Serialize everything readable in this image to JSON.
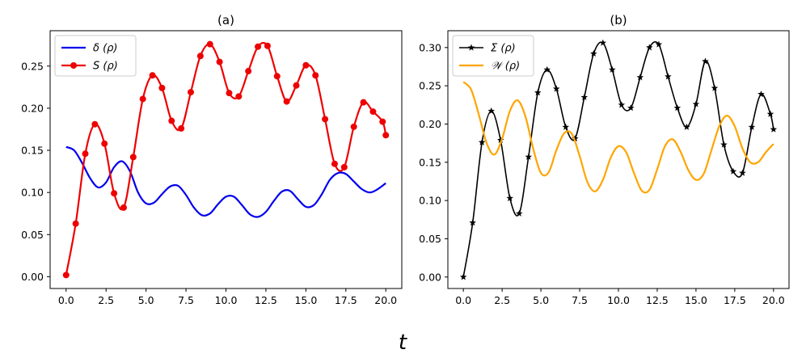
{
  "figure": {
    "xlabel": "t"
  },
  "chart_data": [
    {
      "type": "line",
      "title": "(a)",
      "xlabel": "",
      "ylabel": "",
      "xlim": [
        -1.0,
        21.0
      ],
      "ylim": [
        -0.014,
        0.292
      ],
      "xticks": [
        0,
        2.5,
        5,
        7.5,
        10,
        12.5,
        15,
        17.5,
        20
      ],
      "xtick_labels": [
        "0.0",
        "2.5",
        "5.0",
        "7.5",
        "10.0",
        "12.5",
        "15.0",
        "17.5",
        "20.0"
      ],
      "yticks": [
        0,
        0.05,
        0.1,
        0.15,
        0.2,
        0.25
      ],
      "ytick_labels": [
        "0.00",
        "0.05",
        "0.10",
        "0.15",
        "0.20",
        "0.25"
      ],
      "legend_position": "top-left",
      "series": [
        {
          "name": "δ (ρ)",
          "color": "#0000ee",
          "marker": "none",
          "x": [
            0,
            0.5,
            1.0,
            1.5,
            2.0,
            2.5,
            3.0,
            3.5,
            4.0,
            4.5,
            5.0,
            5.5,
            6.0,
            6.5,
            7.0,
            7.5,
            8.0,
            8.5,
            9.0,
            9.5,
            10.0,
            10.5,
            11.0,
            11.5,
            12.0,
            12.5,
            13.0,
            13.5,
            14.0,
            14.5,
            15.0,
            15.5,
            16.0,
            16.5,
            17.0,
            17.5,
            18.0,
            18.5,
            19.0,
            19.5,
            20.0
          ],
          "y": [
            0.154,
            0.15,
            0.135,
            0.117,
            0.106,
            0.112,
            0.13,
            0.137,
            0.125,
            0.1,
            0.087,
            0.088,
            0.098,
            0.107,
            0.108,
            0.097,
            0.082,
            0.073,
            0.075,
            0.086,
            0.095,
            0.095,
            0.085,
            0.074,
            0.071,
            0.077,
            0.09,
            0.101,
            0.102,
            0.092,
            0.083,
            0.085,
            0.098,
            0.115,
            0.123,
            0.122,
            0.113,
            0.104,
            0.1,
            0.104,
            0.111
          ]
        },
        {
          "name": "S (ρ)",
          "color": "#ee0000",
          "marker": "circle",
          "x": [
            0,
            0.6,
            1.2,
            1.8,
            2.4,
            3.0,
            3.6,
            4.2,
            4.8,
            5.4,
            6.0,
            6.6,
            7.2,
            7.8,
            8.4,
            9.0,
            9.6,
            10.2,
            10.8,
            11.4,
            12.0,
            12.6,
            13.2,
            13.8,
            14.4,
            15.0,
            15.6,
            16.2,
            16.8,
            17.4,
            18.0,
            18.6,
            19.2,
            19.8,
            20.0
          ],
          "y": [
            0.002,
            0.063,
            0.146,
            0.181,
            0.158,
            0.099,
            0.082,
            0.142,
            0.211,
            0.239,
            0.224,
            0.185,
            0.176,
            0.219,
            0.262,
            0.276,
            0.255,
            0.218,
            0.214,
            0.244,
            0.273,
            0.274,
            0.238,
            0.208,
            0.227,
            0.251,
            0.239,
            0.187,
            0.134,
            0.13,
            0.178,
            0.207,
            0.196,
            0.184,
            0.168
          ]
        }
      ]
    },
    {
      "type": "line",
      "title": "(b)",
      "xlabel": "",
      "ylabel": "",
      "xlim": [
        -1.0,
        21.0
      ],
      "ylim": [
        -0.015,
        0.322
      ],
      "xticks": [
        0,
        2.5,
        5,
        7.5,
        10,
        12.5,
        15,
        17.5,
        20
      ],
      "xtick_labels": [
        "0.0",
        "2.5",
        "5.0",
        "7.5",
        "10.0",
        "12.5",
        "15.0",
        "17.5",
        "20.0"
      ],
      "yticks": [
        0,
        0.05,
        0.1,
        0.15,
        0.2,
        0.25,
        0.3
      ],
      "ytick_labels": [
        "0.00",
        "0.05",
        "0.10",
        "0.15",
        "0.20",
        "0.25",
        "0.30"
      ],
      "legend_position": "top-left",
      "series": [
        {
          "name": "Σ (ρ)",
          "color": "#000000",
          "marker": "star",
          "x": [
            0,
            0.6,
            1.2,
            1.8,
            2.4,
            3.0,
            3.6,
            4.2,
            4.8,
            5.4,
            6.0,
            6.6,
            7.2,
            7.8,
            8.4,
            9.0,
            9.6,
            10.2,
            10.8,
            11.4,
            12.0,
            12.6,
            13.2,
            13.8,
            14.4,
            15.0,
            15.6,
            16.2,
            16.8,
            17.4,
            18.0,
            18.6,
            19.2,
            19.8,
            20.0
          ],
          "y": [
            0.0,
            0.071,
            0.176,
            0.217,
            0.179,
            0.103,
            0.083,
            0.157,
            0.241,
            0.271,
            0.246,
            0.196,
            0.181,
            0.235,
            0.292,
            0.306,
            0.271,
            0.225,
            0.221,
            0.261,
            0.3,
            0.304,
            0.262,
            0.221,
            0.196,
            0.226,
            0.282,
            0.247,
            0.173,
            0.138,
            0.136,
            0.196,
            0.239,
            0.213,
            0.193
          ]
        },
        {
          "name": "𝒲 (ρ)",
          "color": "#ffa500",
          "marker": "none",
          "x": [
            0,
            0.5,
            1.0,
            1.5,
            2.0,
            2.5,
            3.0,
            3.5,
            4.0,
            4.5,
            5.0,
            5.5,
            6.0,
            6.5,
            7.0,
            7.5,
            8.0,
            8.5,
            9.0,
            9.5,
            10.0,
            10.5,
            11.0,
            11.5,
            12.0,
            12.5,
            13.0,
            13.5,
            14.0,
            14.5,
            15.0,
            15.5,
            16.0,
            16.5,
            17.0,
            17.5,
            18.0,
            18.5,
            19.0,
            19.5,
            20.0
          ],
          "y": [
            0.255,
            0.245,
            0.212,
            0.175,
            0.16,
            0.181,
            0.217,
            0.231,
            0.21,
            0.168,
            0.136,
            0.137,
            0.166,
            0.188,
            0.187,
            0.158,
            0.124,
            0.112,
            0.127,
            0.156,
            0.171,
            0.163,
            0.136,
            0.113,
            0.114,
            0.141,
            0.171,
            0.18,
            0.164,
            0.14,
            0.127,
            0.135,
            0.166,
            0.197,
            0.211,
            0.197,
            0.168,
            0.15,
            0.15,
            0.163,
            0.174
          ]
        }
      ]
    }
  ]
}
